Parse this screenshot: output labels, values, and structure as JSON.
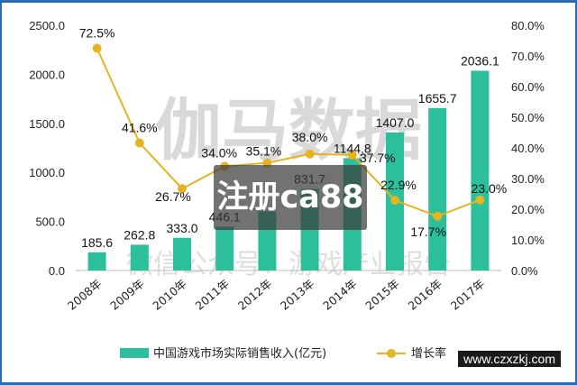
{
  "chart_data": {
    "type": "bar",
    "categories": [
      "2008年",
      "2009年",
      "2010年",
      "2011年",
      "2012年",
      "2013年",
      "2014年",
      "2015年",
      "2016年",
      "2017年"
    ],
    "series": [
      {
        "name": "中国游戏市场实际销售收入(亿元)",
        "type": "bar",
        "axis": "left",
        "color": "#2bbf9b",
        "values": [
          185.6,
          262.8,
          333.0,
          446.1,
          602.8,
          831.7,
          1144.8,
          1407.0,
          1655.7,
          2036.1
        ],
        "labels": [
          "185.6",
          "262.8",
          "333.0",
          "446.1",
          "",
          "831.7",
          "1144.8",
          "1407.0",
          "1655.7",
          "2036.1"
        ]
      },
      {
        "name": "增长率",
        "type": "line",
        "axis": "right",
        "color": "#e6b422",
        "values": [
          72.5,
          41.6,
          26.7,
          34.0,
          35.1,
          38.0,
          37.7,
          22.9,
          17.7,
          23.0
        ],
        "labels": [
          "72.5%",
          "41.6%",
          "26.7%",
          "34.0%",
          "35.1%",
          "38.0%",
          "37.7%",
          "22.9%",
          "17.7%",
          "23.0%"
        ]
      }
    ],
    "y_left": {
      "min": 0,
      "max": 2500,
      "ticks": [
        "0.0",
        "500.0",
        "1000.0",
        "1500.0",
        "2000.0",
        "2500.0"
      ]
    },
    "y_right": {
      "min": 0,
      "max": 80,
      "ticks": [
        "0.0%",
        "10.0%",
        "20.0%",
        "30.0%",
        "40.0%",
        "50.0%",
        "60.0%",
        "70.0%",
        "80.0%"
      ]
    },
    "legend_position": "bottom",
    "grid": false
  },
  "watermark": {
    "main": "伽马数据",
    "sub": "微信公众号：游戏产业报告"
  },
  "overlay_text": "注册ca88",
  "site_text": "www.czxzkj.com"
}
